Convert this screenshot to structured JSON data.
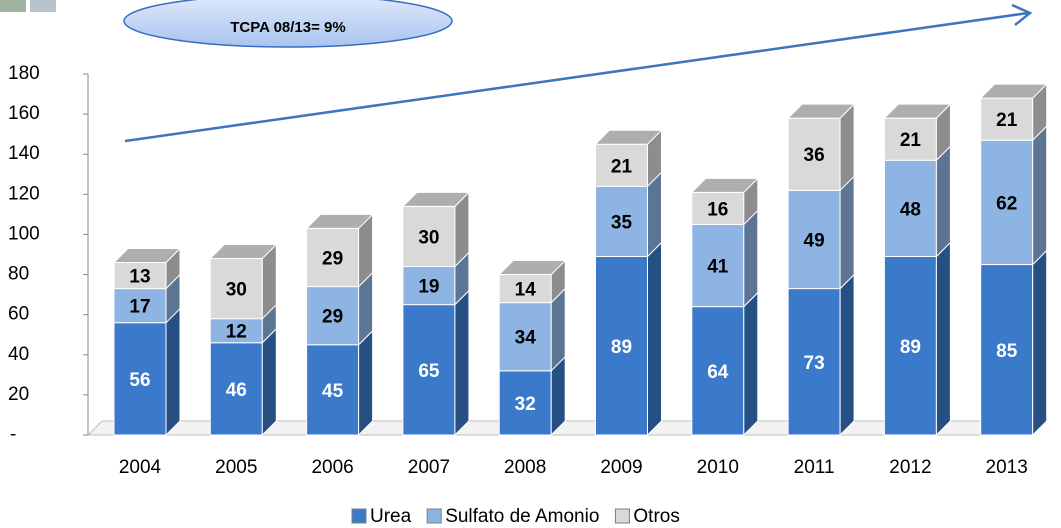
{
  "chart_data": {
    "type": "bar3d-stacked",
    "annotation": "TCPA 08/13= 9%",
    "categories": [
      "2004",
      "2005",
      "2006",
      "2007",
      "2008",
      "2009",
      "2010",
      "2011",
      "2012",
      "2013"
    ],
    "series": [
      {
        "name": "Urea",
        "color": "#3b79cb",
        "values": [
          56,
          46,
          45,
          65,
          32,
          89,
          64,
          73,
          89,
          85
        ]
      },
      {
        "name": "Sulfato de Amonio",
        "color": "#8db4e3",
        "values": [
          17,
          12,
          29,
          19,
          34,
          35,
          41,
          49,
          48,
          62
        ]
      },
      {
        "name": "Otros",
        "color": "#d9d9d9",
        "values": [
          13,
          30,
          29,
          30,
          14,
          21,
          16,
          36,
          21,
          21
        ]
      }
    ],
    "ylim": [
      0,
      180
    ],
    "yticks": [
      {
        "value": 0,
        "label": "-"
      },
      20,
      40,
      60,
      80,
      100,
      120,
      140,
      160,
      180
    ]
  }
}
